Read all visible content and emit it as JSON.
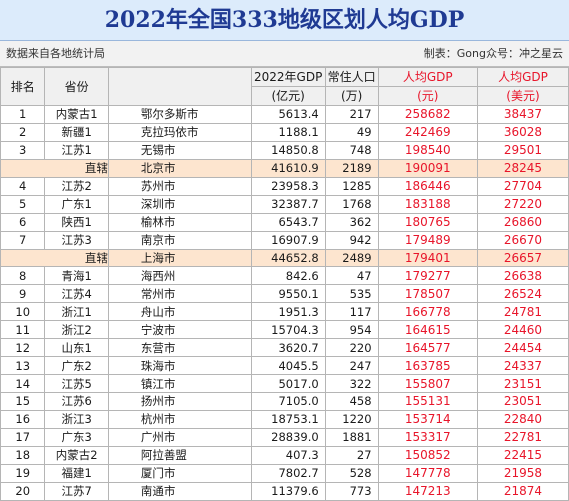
{
  "title": "2022年全国333地级区划人均GDP",
  "source_text": "数据来自各地统计局",
  "credit_text": "制表：Gong众号：冲之星云",
  "headers": {
    "rank": "排名",
    "province": "省份",
    "gdp_1": "2022年GDP",
    "gdp_2": "(亿元)",
    "pop_1": "常住人口",
    "pop_2": "(万)",
    "rmb_1": "人均GDP",
    "rmb_2": "(元)",
    "usd_1": "人均GDP",
    "usd_2": "(美元)"
  },
  "rows": [
    {
      "rank": "1",
      "province": "内蒙古1",
      "city": "鄂尔多斯市",
      "gdp": "5613.4",
      "pop": "217",
      "per_rmb": "258682",
      "per_usd": "38437",
      "direct": false
    },
    {
      "rank": "2",
      "province": "新疆1",
      "city": "克拉玛依市",
      "gdp": "1188.1",
      "pop": "49",
      "per_rmb": "242469",
      "per_usd": "36028",
      "direct": false
    },
    {
      "rank": "3",
      "province": "江苏1",
      "city": "无锡市",
      "gdp": "14850.8",
      "pop": "748",
      "per_rmb": "198540",
      "per_usd": "29501",
      "direct": false
    },
    {
      "rank": "直辖",
      "province": "",
      "city": "北京市",
      "gdp": "41610.9",
      "pop": "2189",
      "per_rmb": "190091",
      "per_usd": "28245",
      "direct": true
    },
    {
      "rank": "4",
      "province": "江苏2",
      "city": "苏州市",
      "gdp": "23958.3",
      "pop": "1285",
      "per_rmb": "186446",
      "per_usd": "27704",
      "direct": false
    },
    {
      "rank": "5",
      "province": "广东1",
      "city": "深圳市",
      "gdp": "32387.7",
      "pop": "1768",
      "per_rmb": "183188",
      "per_usd": "27220",
      "direct": false
    },
    {
      "rank": "6",
      "province": "陕西1",
      "city": "榆林市",
      "gdp": "6543.7",
      "pop": "362",
      "per_rmb": "180765",
      "per_usd": "26860",
      "direct": false
    },
    {
      "rank": "7",
      "province": "江苏3",
      "city": "南京市",
      "gdp": "16907.9",
      "pop": "942",
      "per_rmb": "179489",
      "per_usd": "26670",
      "direct": false
    },
    {
      "rank": "直辖",
      "province": "",
      "city": "上海市",
      "gdp": "44652.8",
      "pop": "2489",
      "per_rmb": "179401",
      "per_usd": "26657",
      "direct": true
    },
    {
      "rank": "8",
      "province": "青海1",
      "city": "海西州",
      "gdp": "842.6",
      "pop": "47",
      "per_rmb": "179277",
      "per_usd": "26638",
      "direct": false
    },
    {
      "rank": "9",
      "province": "江苏4",
      "city": "常州市",
      "gdp": "9550.1",
      "pop": "535",
      "per_rmb": "178507",
      "per_usd": "26524",
      "direct": false
    },
    {
      "rank": "10",
      "province": "浙江1",
      "city": "舟山市",
      "gdp": "1951.3",
      "pop": "117",
      "per_rmb": "166778",
      "per_usd": "24781",
      "direct": false
    },
    {
      "rank": "11",
      "province": "浙江2",
      "city": "宁波市",
      "gdp": "15704.3",
      "pop": "954",
      "per_rmb": "164615",
      "per_usd": "24460",
      "direct": false
    },
    {
      "rank": "12",
      "province": "山东1",
      "city": "东营市",
      "gdp": "3620.7",
      "pop": "220",
      "per_rmb": "164577",
      "per_usd": "24454",
      "direct": false
    },
    {
      "rank": "13",
      "province": "广东2",
      "city": "珠海市",
      "gdp": "4045.5",
      "pop": "247",
      "per_rmb": "163785",
      "per_usd": "24337",
      "direct": false
    },
    {
      "rank": "14",
      "province": "江苏5",
      "city": "镇江市",
      "gdp": "5017.0",
      "pop": "322",
      "per_rmb": "155807",
      "per_usd": "23151",
      "direct": false
    },
    {
      "rank": "15",
      "province": "江苏6",
      "city": "扬州市",
      "gdp": "7105.0",
      "pop": "458",
      "per_rmb": "155131",
      "per_usd": "23051",
      "direct": false
    },
    {
      "rank": "16",
      "province": "浙江3",
      "city": "杭州市",
      "gdp": "18753.1",
      "pop": "1220",
      "per_rmb": "153714",
      "per_usd": "22840",
      "direct": false
    },
    {
      "rank": "17",
      "province": "广东3",
      "city": "广州市",
      "gdp": "28839.0",
      "pop": "1881",
      "per_rmb": "153317",
      "per_usd": "22781",
      "direct": false
    },
    {
      "rank": "18",
      "province": "内蒙古2",
      "city": "阿拉善盟",
      "gdp": "407.3",
      "pop": "27",
      "per_rmb": "150852",
      "per_usd": "22415",
      "direct": false
    },
    {
      "rank": "19",
      "province": "福建1",
      "city": "厦门市",
      "gdp": "7802.7",
      "pop": "528",
      "per_rmb": "147778",
      "per_usd": "21958",
      "direct": false
    },
    {
      "rank": "20",
      "province": "江苏7",
      "city": "南通市",
      "gdp": "11379.6",
      "pop": "773",
      "per_rmb": "147213",
      "per_usd": "21874",
      "direct": false
    }
  ],
  "colors": {
    "title_bg": "#dcebfb",
    "title_text": "#1f3a93",
    "per_capita_text": "#e8152a",
    "direct_row_bg": "#fde5cf"
  }
}
